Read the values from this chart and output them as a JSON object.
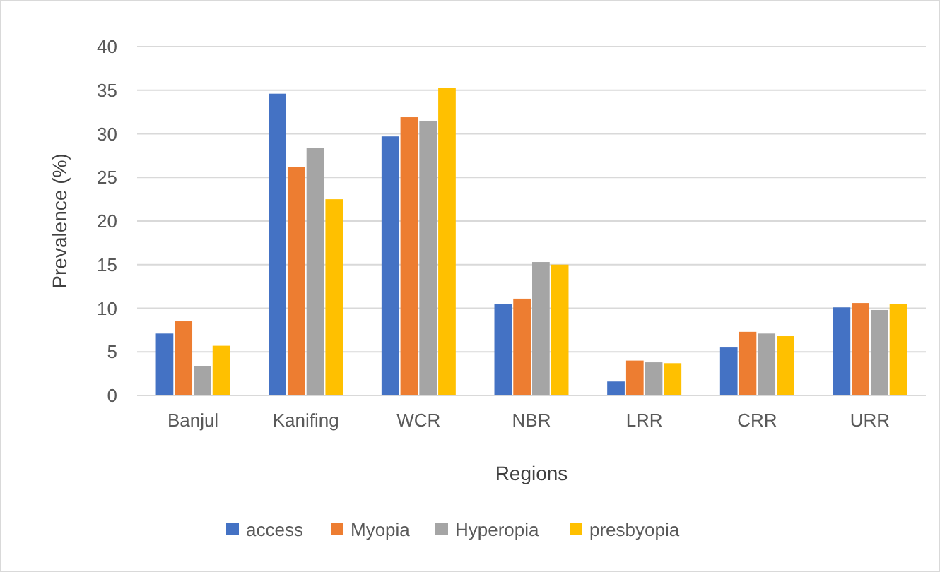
{
  "chart_data": {
    "type": "bar",
    "xlabel": "Regions",
    "ylabel": "Prevalence (%)",
    "categories": [
      "Banjul",
      "Kanifing",
      "WCR",
      "NBR",
      "LRR",
      "CRR",
      "URR"
    ],
    "series": [
      {
        "name": "access",
        "color": "#4472c4",
        "values": [
          7.1,
          34.6,
          29.7,
          10.5,
          1.6,
          5.5,
          10.1
        ]
      },
      {
        "name": "Myopia",
        "color": "#ed7d31",
        "values": [
          8.5,
          26.2,
          31.9,
          11.1,
          4.0,
          7.3,
          10.6
        ]
      },
      {
        "name": "Hyperopia",
        "color": "#a5a5a5",
        "values": [
          3.4,
          28.4,
          31.5,
          15.3,
          3.8,
          7.1,
          9.8
        ]
      },
      {
        "name": "presbyopia",
        "color": "#ffc000",
        "values": [
          5.7,
          22.5,
          35.3,
          15.0,
          3.7,
          6.8,
          10.5
        ]
      }
    ],
    "ylim": [
      0,
      40
    ],
    "yticks": [
      0,
      5,
      10,
      15,
      20,
      25,
      30,
      35,
      40
    ],
    "grid": "y",
    "legend": "bottom"
  }
}
